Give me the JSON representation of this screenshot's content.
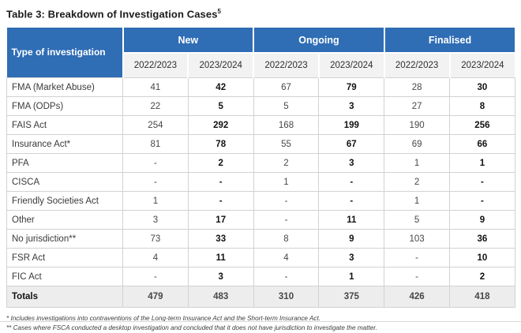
{
  "title": {
    "text": "Table 3: Breakdown of Investigation Cases",
    "superscript": "5"
  },
  "table": {
    "corner_header": "Type of investigation",
    "groups": [
      {
        "label": "New"
      },
      {
        "label": "Ongoing"
      },
      {
        "label": "Finalised"
      }
    ],
    "year_headers": [
      "2022/2023",
      "2023/2024"
    ],
    "rows": [
      {
        "label": "FMA (Market Abuse)",
        "values": [
          "41",
          "42",
          "67",
          "79",
          "28",
          "30"
        ]
      },
      {
        "label": "FMA (ODPs)",
        "values": [
          "22",
          "5",
          "5",
          "3",
          "27",
          "8"
        ]
      },
      {
        "label": "FAIS Act",
        "values": [
          "254",
          "292",
          "168",
          "199",
          "190",
          "256"
        ]
      },
      {
        "label": "Insurance Act*",
        "values": [
          "81",
          "78",
          "55",
          "67",
          "69",
          "66"
        ]
      },
      {
        "label": "PFA",
        "values": [
          "-",
          "2",
          "2",
          "3",
          "1",
          "1"
        ]
      },
      {
        "label": "CISCA",
        "values": [
          "-",
          "-",
          "1",
          "-",
          "2",
          "-"
        ]
      },
      {
        "label": "Friendly Societies Act",
        "values": [
          "1",
          "-",
          "-",
          "-",
          "1",
          "-"
        ]
      },
      {
        "label": "Other",
        "values": [
          "3",
          "17",
          "-",
          "11",
          "5",
          "9"
        ]
      },
      {
        "label": "No jurisdiction**",
        "values": [
          "73",
          "33",
          "8",
          "9",
          "103",
          "36"
        ]
      },
      {
        "label": "FSR Act",
        "values": [
          "4",
          "11",
          "4",
          "3",
          "-",
          "10"
        ]
      },
      {
        "label": "FIC Act",
        "values": [
          "-",
          "3",
          "-",
          "1",
          "-",
          "2"
        ]
      }
    ],
    "totals": {
      "label": "Totals",
      "values": [
        "479",
        "483",
        "310",
        "375",
        "426",
        "418"
      ]
    }
  },
  "footnotes": [
    "* Includes investigations into contraventions of the Long-term Insurance Act and the Short-term Insurance Act.",
    "** Cases where FSCA conducted a desktop investigation and concluded that it does not have jurisdiction to investigate the matter."
  ],
  "colors": {
    "header_blue": "#2f6db5",
    "subheader_gray": "#f2f2f2",
    "totals_gray": "#ededed",
    "border_gray": "#d2d2d2"
  }
}
